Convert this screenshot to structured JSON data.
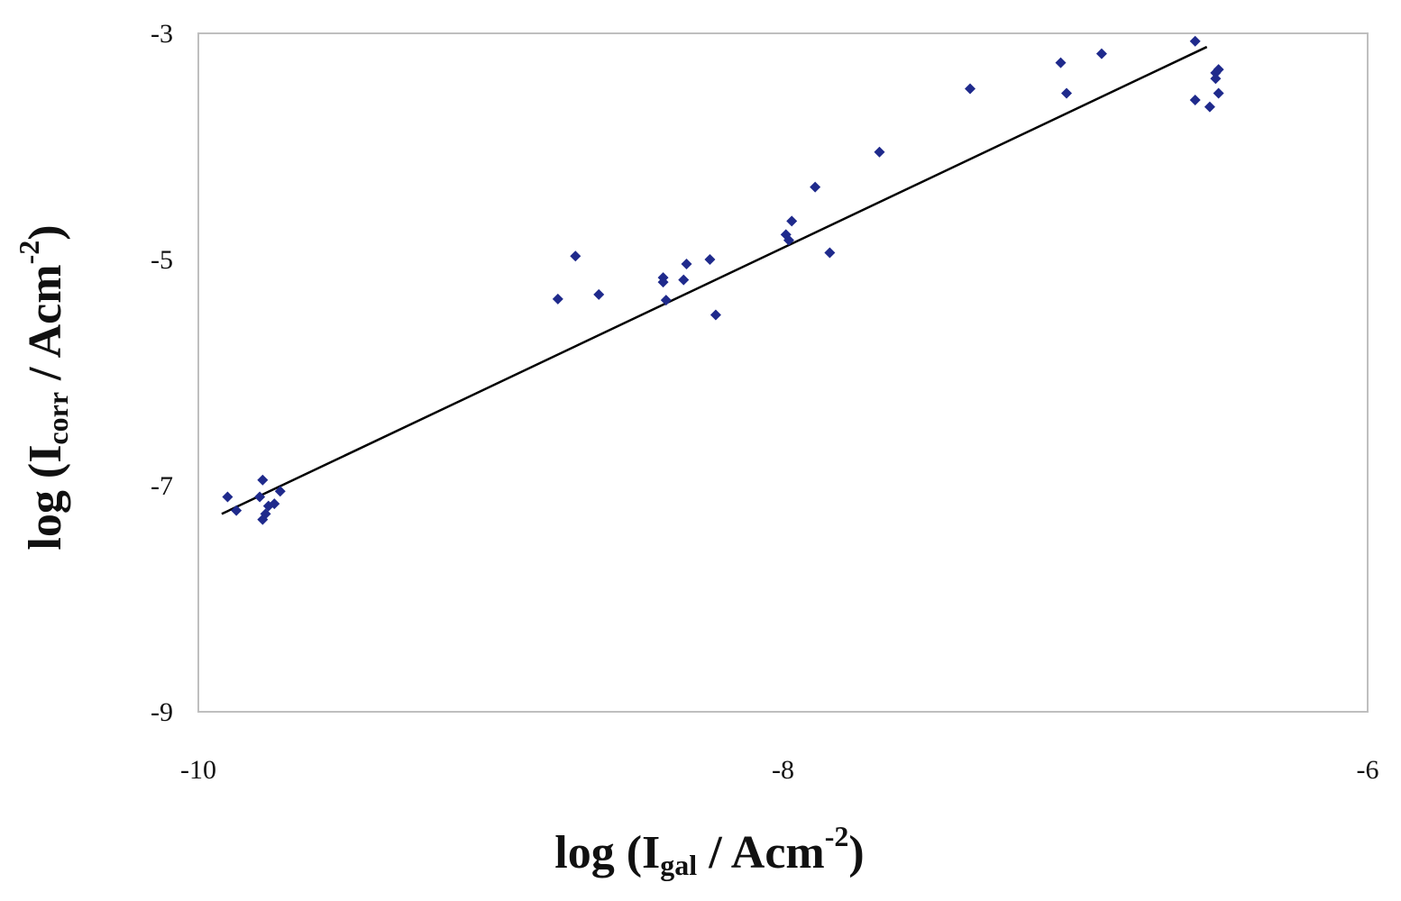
{
  "chart_data": {
    "type": "scatter",
    "title": "",
    "xlabel": {
      "prefix": "log (I",
      "sub": "gal",
      "mid": " / Acm",
      "sup": "-2",
      "suffix": ")"
    },
    "ylabel": {
      "prefix": "log (I",
      "sub": "corr",
      "mid": " / Acm",
      "sup": "-2",
      "suffix": ")"
    },
    "xlim": [
      -10,
      -6
    ],
    "ylim": [
      -9,
      -3
    ],
    "xticks": [
      -10,
      -8,
      -6
    ],
    "yticks": [
      -3,
      -5,
      -7,
      -9
    ],
    "xtick_labels": [
      "-10",
      "-8",
      "-6"
    ],
    "ytick_labels": [
      "-3",
      "-5",
      "-7",
      "-9"
    ],
    "grid": false,
    "legend": "none",
    "marker": "diamond",
    "colors": {
      "points": "#1f2a8c",
      "trendline": "#000000",
      "plot_border": "#bfbfbf"
    },
    "series": [
      {
        "points": [
          [
            -9.9,
            -7.1
          ],
          [
            -9.87,
            -7.22
          ],
          [
            -9.79,
            -7.1
          ],
          [
            -9.78,
            -6.95
          ],
          [
            -9.78,
            -7.3
          ],
          [
            -9.77,
            -7.25
          ],
          [
            -9.76,
            -7.18
          ],
          [
            -9.74,
            -7.16
          ],
          [
            -9.72,
            -7.05
          ],
          [
            -8.77,
            -5.35
          ],
          [
            -8.71,
            -4.97
          ],
          [
            -8.63,
            -5.31
          ],
          [
            -8.41,
            -5.16
          ],
          [
            -8.41,
            -5.2
          ],
          [
            -8.4,
            -5.36
          ],
          [
            -8.34,
            -5.18
          ],
          [
            -8.33,
            -5.04
          ],
          [
            -8.25,
            -5.0
          ],
          [
            -8.23,
            -5.49
          ],
          [
            -7.99,
            -4.78
          ],
          [
            -7.98,
            -4.83
          ],
          [
            -7.97,
            -4.66
          ],
          [
            -7.89,
            -4.36
          ],
          [
            -7.84,
            -4.94
          ],
          [
            -7.67,
            -4.05
          ],
          [
            -7.36,
            -3.49
          ],
          [
            -7.05,
            -3.26
          ],
          [
            -7.03,
            -3.53
          ],
          [
            -6.91,
            -3.18
          ],
          [
            -6.59,
            -3.07
          ],
          [
            -6.59,
            -3.59
          ],
          [
            -6.54,
            -3.65
          ],
          [
            -6.52,
            -3.35
          ],
          [
            -6.52,
            -3.4
          ],
          [
            -6.51,
            -3.53
          ],
          [
            -6.51,
            -3.32
          ]
        ]
      }
    ],
    "trendline": {
      "x": [
        -9.92,
        -6.55
      ],
      "y": [
        -7.25,
        -3.12
      ]
    }
  }
}
